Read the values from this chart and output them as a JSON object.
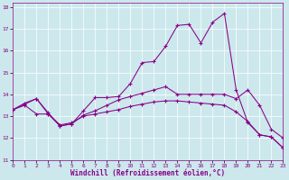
{
  "xlabel": "Windchill (Refroidissement éolien,°C)",
  "background_color": "#cce8ec",
  "line_color": "#880088",
  "x": [
    0,
    1,
    2,
    3,
    4,
    5,
    6,
    7,
    8,
    9,
    10,
    11,
    12,
    13,
    14,
    15,
    16,
    17,
    18,
    19,
    20,
    21,
    22,
    23
  ],
  "line1": [
    13.3,
    13.6,
    13.8,
    13.1,
    12.55,
    12.65,
    13.25,
    13.85,
    13.85,
    13.9,
    14.5,
    15.45,
    15.5,
    16.2,
    17.15,
    17.2,
    16.35,
    17.3,
    17.7,
    14.2,
    12.7,
    12.15,
    12.05,
    11.55
  ],
  "line2": [
    13.3,
    13.55,
    13.8,
    13.15,
    12.55,
    12.65,
    13.05,
    13.25,
    13.5,
    13.75,
    13.9,
    14.05,
    14.2,
    14.35,
    14.0,
    14.0,
    14.0,
    14.0,
    14.0,
    13.8,
    14.2,
    13.5,
    12.4,
    12.0
  ],
  "line3": [
    13.3,
    13.5,
    13.1,
    13.1,
    12.6,
    12.7,
    13.0,
    13.1,
    13.2,
    13.3,
    13.45,
    13.55,
    13.65,
    13.7,
    13.7,
    13.65,
    13.6,
    13.55,
    13.5,
    13.2,
    12.75,
    12.15,
    12.05,
    11.55
  ],
  "xlim": [
    0,
    23
  ],
  "ylim": [
    11.0,
    18.2
  ],
  "yticks": [
    11,
    12,
    13,
    14,
    15,
    16,
    17,
    18
  ],
  "xticks": [
    0,
    1,
    2,
    3,
    4,
    5,
    6,
    7,
    8,
    9,
    10,
    11,
    12,
    13,
    14,
    15,
    16,
    17,
    18,
    19,
    20,
    21,
    22,
    23
  ]
}
